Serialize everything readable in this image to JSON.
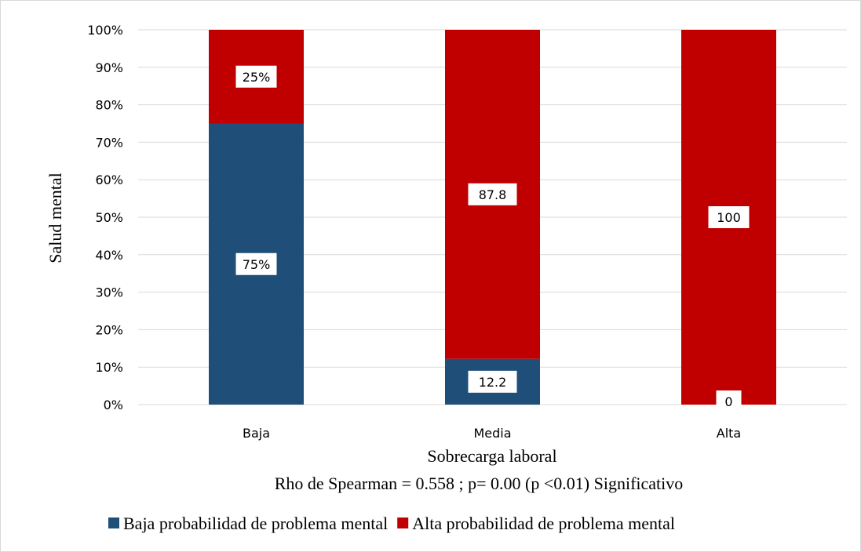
{
  "chart_data": {
    "type": "bar",
    "stacked": true,
    "categories": [
      "Baja",
      "Media",
      "Alta"
    ],
    "series": [
      {
        "name": "Baja probabilidad de problema mental",
        "color": "#1f4e79",
        "values": [
          75,
          12.2,
          0
        ],
        "labels": [
          "75%",
          "12.2",
          "0"
        ]
      },
      {
        "name": "Alta probabilidad de problema mental",
        "color": "#c00000",
        "values": [
          25,
          87.8,
          100
        ],
        "labels": [
          "25%",
          "87.8",
          "100"
        ]
      }
    ],
    "xlabel": "Sobrecarga laboral",
    "ylabel": "Salud mental",
    "subtitle": "Rho de Spearman = 0.558 ; p= 0.00  (p <0.01) Significativo",
    "ylim": [
      0,
      100
    ],
    "yticks": [
      "0%",
      "10%",
      "20%",
      "30%",
      "40%",
      "50%",
      "60%",
      "70%",
      "80%",
      "90%",
      "100%"
    ],
    "grid": true,
    "legend": "bottom"
  }
}
